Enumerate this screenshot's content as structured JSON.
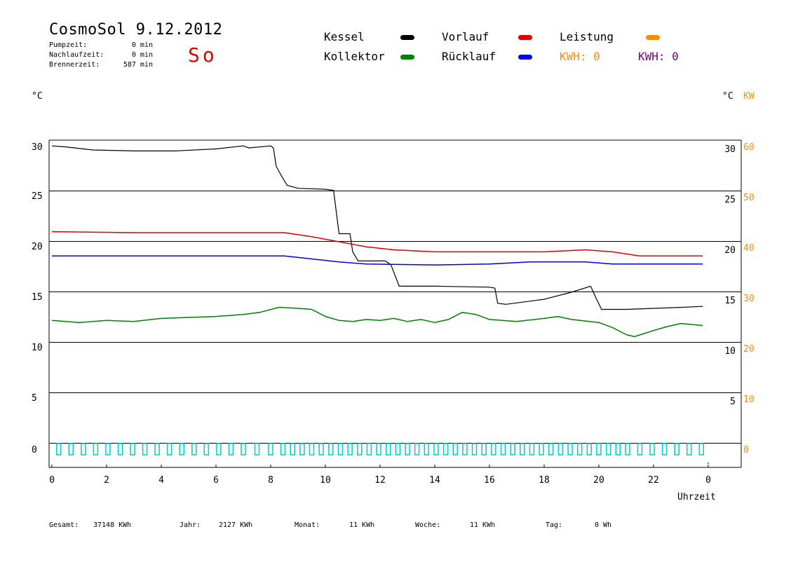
{
  "header": {
    "title": "CosmoSol 9.12.2012",
    "day": "So",
    "pumpzeit_label": "Pumpzeit:",
    "pumpzeit_value": "0 min",
    "nachlaufzeit_label": "Nachlaufzeit:",
    "nachlaufzeit_value": "0 min",
    "brennerzeit_label": "Brennerzeit:",
    "brennerzeit_value": "587 min"
  },
  "legend": {
    "kessel": "Kessel",
    "kollektor": "Kollektor",
    "vorlauf": "Vorlauf",
    "ruecklauf": "Rücklauf",
    "leistung": "Leistung",
    "kwh_orange": "KWH: 0",
    "kwh_purple": "KWH: 0"
  },
  "axes": {
    "left_unit": "°C",
    "right_unit": "°C",
    "right_unit_kw": "KW",
    "x_title": "Uhrzeit"
  },
  "footer": {
    "gesamt_label": "Gesamt:",
    "gesamt_value": "37148 KWh",
    "jahr_label": "Jahr:",
    "jahr_value": "2127 KWh",
    "monat_label": "Monat:",
    "monat_value": "11 KWh",
    "woche_label": "Woche:",
    "woche_value": "11 KWh",
    "tag_label": "Tag:",
    "tag_value": "0 Wh"
  },
  "colors": {
    "kessel": "#000000",
    "kollektor": "#008000",
    "vorlauf": "#e00000",
    "ruecklauf": "#0000e0",
    "leistung": "#ff8c00",
    "kwh_purple": "#800080",
    "pump": "#00cccc",
    "grid": "#000000"
  },
  "chart_data": {
    "type": "line",
    "x_ticks": [
      "0",
      "2",
      "4",
      "6",
      "8",
      "10",
      "12",
      "14",
      "16",
      "18",
      "20",
      "22",
      "0"
    ],
    "y_left_ticks": [
      0,
      5,
      10,
      15,
      20,
      25,
      30
    ],
    "y_right_ticks": [
      5,
      10,
      15,
      20,
      25,
      30
    ],
    "y_kw_ticks": [
      0,
      10,
      20,
      30,
      40,
      50,
      60
    ],
    "xlim": [
      0,
      24
    ],
    "ylim": [
      0,
      30
    ],
    "series": [
      {
        "name": "Kessel",
        "color": "#000000",
        "points": [
          [
            0,
            29.5
          ],
          [
            0.5,
            29.4
          ],
          [
            1.5,
            29.1
          ],
          [
            3,
            29.0
          ],
          [
            4.5,
            29.0
          ],
          [
            6,
            29.2
          ],
          [
            7,
            29.5
          ],
          [
            7.2,
            29.3
          ],
          [
            8.0,
            29.5
          ],
          [
            8.1,
            29.3
          ],
          [
            8.2,
            27.5
          ],
          [
            8.4,
            26.5
          ],
          [
            8.6,
            25.6
          ],
          [
            9.0,
            25.3
          ],
          [
            10.0,
            25.2
          ],
          [
            10.3,
            25.1
          ],
          [
            10.5,
            20.8
          ],
          [
            10.9,
            20.8
          ],
          [
            11.0,
            19.0
          ],
          [
            11.2,
            18.1
          ],
          [
            12.2,
            18.1
          ],
          [
            12.4,
            17.7
          ],
          [
            12.7,
            15.6
          ],
          [
            14.0,
            15.6
          ],
          [
            16.0,
            15.5
          ],
          [
            16.2,
            15.4
          ],
          [
            16.3,
            13.9
          ],
          [
            16.6,
            13.8
          ],
          [
            18.0,
            14.3
          ],
          [
            19.0,
            15.0
          ],
          [
            19.7,
            15.6
          ],
          [
            19.9,
            14.4
          ],
          [
            20.1,
            13.3
          ],
          [
            21.0,
            13.3
          ],
          [
            23.0,
            13.5
          ],
          [
            23.8,
            13.6
          ]
        ]
      },
      {
        "name": "Vorlauf",
        "color": "#e00000",
        "points": [
          [
            0,
            21.0
          ],
          [
            3,
            20.9
          ],
          [
            6,
            20.9
          ],
          [
            8.5,
            20.9
          ],
          [
            9.5,
            20.5
          ],
          [
            10.5,
            20.0
          ],
          [
            11.5,
            19.5
          ],
          [
            12.5,
            19.2
          ],
          [
            14,
            19.0
          ],
          [
            16,
            19.0
          ],
          [
            18,
            19.0
          ],
          [
            19.5,
            19.2
          ],
          [
            20.5,
            19.0
          ],
          [
            21.5,
            18.6
          ],
          [
            23,
            18.6
          ],
          [
            23.8,
            18.6
          ]
        ]
      },
      {
        "name": "Rücklauf",
        "color": "#0000e0",
        "points": [
          [
            0,
            18.6
          ],
          [
            4,
            18.6
          ],
          [
            8.5,
            18.6
          ],
          [
            9.5,
            18.3
          ],
          [
            10.5,
            18.0
          ],
          [
            11.5,
            17.8
          ],
          [
            14,
            17.7
          ],
          [
            16,
            17.8
          ],
          [
            17.5,
            18.0
          ],
          [
            19.5,
            18.0
          ],
          [
            20.5,
            17.8
          ],
          [
            22,
            17.8
          ],
          [
            23.8,
            17.8
          ]
        ]
      },
      {
        "name": "Kollektor",
        "color": "#008000",
        "points": [
          [
            0,
            12.2
          ],
          [
            1,
            12.0
          ],
          [
            2,
            12.2
          ],
          [
            3,
            12.1
          ],
          [
            4,
            12.4
          ],
          [
            5,
            12.5
          ],
          [
            6,
            12.6
          ],
          [
            7,
            12.8
          ],
          [
            7.6,
            13.0
          ],
          [
            8.3,
            13.5
          ],
          [
            9,
            13.4
          ],
          [
            9.5,
            13.3
          ],
          [
            10,
            12.6
          ],
          [
            10.5,
            12.2
          ],
          [
            11,
            12.1
          ],
          [
            11.5,
            12.3
          ],
          [
            12,
            12.2
          ],
          [
            12.5,
            12.4
          ],
          [
            13,
            12.1
          ],
          [
            13.5,
            12.3
          ],
          [
            14,
            12.0
          ],
          [
            14.5,
            12.3
          ],
          [
            15,
            13.0
          ],
          [
            15.5,
            12.8
          ],
          [
            16,
            12.3
          ],
          [
            17,
            12.1
          ],
          [
            18,
            12.4
          ],
          [
            18.5,
            12.6
          ],
          [
            19,
            12.3
          ],
          [
            20,
            12.0
          ],
          [
            20.5,
            11.5
          ],
          [
            21,
            10.8
          ],
          [
            21.3,
            10.6
          ],
          [
            22,
            11.2
          ],
          [
            22.5,
            11.6
          ],
          [
            23,
            11.9
          ],
          [
            23.8,
            11.7
          ]
        ]
      }
    ],
    "pump_marks": [
      0.25,
      0.7,
      1.15,
      1.6,
      2.05,
      2.5,
      2.95,
      3.4,
      3.85,
      4.3,
      4.75,
      5.2,
      5.65,
      6.1,
      6.55,
      7.0,
      7.5,
      8.0,
      8.45,
      8.8,
      9.15,
      9.5,
      9.85,
      10.2,
      10.55,
      10.9,
      11.25,
      11.6,
      11.95,
      12.3,
      12.65,
      13.0,
      13.35,
      13.7,
      14.05,
      14.4,
      14.75,
      15.1,
      15.45,
      15.8,
      16.15,
      16.5,
      16.85,
      17.2,
      17.55,
      17.9,
      18.25,
      18.6,
      18.95,
      19.3,
      19.65,
      20.0,
      20.35,
      20.7,
      21.05,
      21.5,
      21.95,
      22.4,
      22.85,
      23.3,
      23.75
    ]
  }
}
